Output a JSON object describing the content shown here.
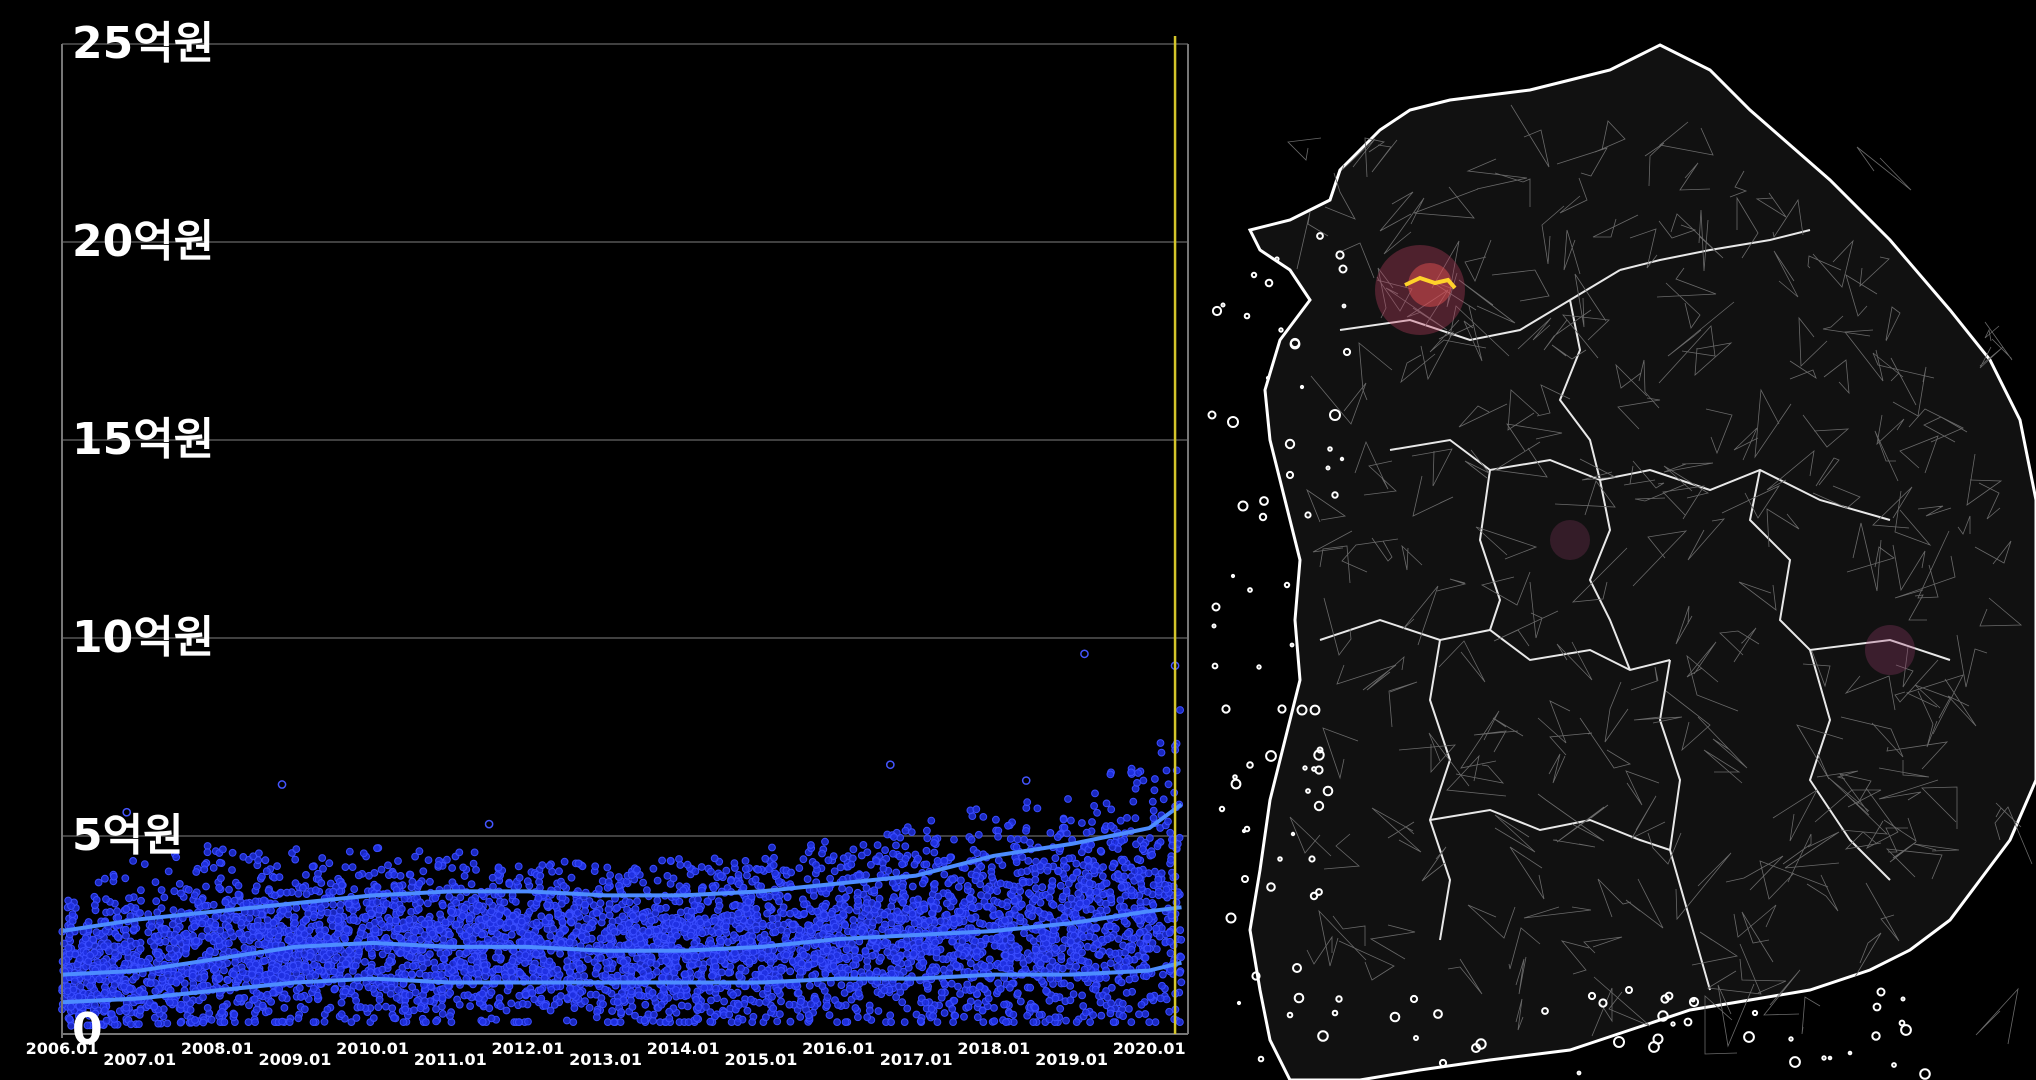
{
  "chart_data": {
    "type": "scatter",
    "title": "",
    "xlabel": "",
    "ylabel": "",
    "y_unit": "억원",
    "ylim": [
      0,
      25
    ],
    "y_ticks": [
      {
        "value": 0,
        "label": "0"
      },
      {
        "value": 5,
        "label": "5억원"
      },
      {
        "value": 10,
        "label": "10억원"
      },
      {
        "value": 15,
        "label": "15억원"
      },
      {
        "value": 20,
        "label": "20억원"
      },
      {
        "value": 25,
        "label": "25억원"
      }
    ],
    "xlim": [
      "2006.01",
      "2020.07"
    ],
    "x_ticks": [
      "2006.01",
      "2007.01",
      "2008.01",
      "2009.01",
      "2010.01",
      "2011.01",
      "2012.01",
      "2013.01",
      "2014.01",
      "2015.01",
      "2016.01",
      "2017.01",
      "2018.01",
      "2019.01",
      "2020.01"
    ],
    "grid": true,
    "current_marker": "2020.05",
    "colors": {
      "points": "#2b3cff",
      "lines": "#4d8cff",
      "marker": "#d4c52a",
      "grid": "#555555"
    },
    "series": [
      {
        "role": "upper-band",
        "x": [
          "2006.01",
          "2007.01",
          "2008.01",
          "2009.01",
          "2010.01",
          "2011.01",
          "2012.01",
          "2013.01",
          "2014.01",
          "2015.01",
          "2016.01",
          "2017.01",
          "2018.01",
          "2019.01",
          "2020.01",
          "2020.06"
        ],
        "values": [
          2.6,
          2.9,
          3.1,
          3.3,
          3.5,
          3.6,
          3.6,
          3.5,
          3.5,
          3.6,
          3.8,
          4.0,
          4.5,
          4.8,
          5.2,
          5.8
        ]
      },
      {
        "role": "median",
        "x": [
          "2006.01",
          "2007.01",
          "2008.01",
          "2009.01",
          "2010.01",
          "2011.01",
          "2012.01",
          "2013.01",
          "2014.01",
          "2015.01",
          "2016.01",
          "2017.01",
          "2018.01",
          "2019.01",
          "2020.01",
          "2020.06"
        ],
        "values": [
          1.5,
          1.6,
          1.9,
          2.2,
          2.3,
          2.2,
          2.2,
          2.1,
          2.1,
          2.2,
          2.4,
          2.5,
          2.6,
          2.8,
          3.1,
          3.2
        ]
      },
      {
        "role": "lower-band",
        "x": [
          "2006.01",
          "2007.01",
          "2008.01",
          "2009.01",
          "2010.01",
          "2011.01",
          "2012.01",
          "2013.01",
          "2014.01",
          "2015.01",
          "2016.01",
          "2017.01",
          "2018.01",
          "2019.01",
          "2020.01",
          "2020.06"
        ],
        "values": [
          0.8,
          0.9,
          1.1,
          1.3,
          1.4,
          1.3,
          1.3,
          1.3,
          1.3,
          1.3,
          1.4,
          1.4,
          1.5,
          1.5,
          1.6,
          1.8
        ]
      }
    ],
    "point_envelope": {
      "x": [
        "2006.01",
        "2007.01",
        "2008.01",
        "2009.01",
        "2010.01",
        "2011.01",
        "2012.01",
        "2013.01",
        "2014.01",
        "2015.01",
        "2016.01",
        "2017.01",
        "2018.01",
        "2019.01",
        "2020.01",
        "2020.06"
      ],
      "upper": [
        3.3,
        4.5,
        4.8,
        4.6,
        4.7,
        4.6,
        4.5,
        4.3,
        4.5,
        4.7,
        4.9,
        5.3,
        5.8,
        6.2,
        7.0,
        8.5
      ],
      "lower": [
        0.2,
        0.25,
        0.3,
        0.3,
        0.3,
        0.3,
        0.3,
        0.3,
        0.3,
        0.3,
        0.3,
        0.3,
        0.3,
        0.3,
        0.3,
        0.3
      ]
    },
    "outliers": [
      {
        "x": "2006.11",
        "y": 5.6
      },
      {
        "x": "2008.11",
        "y": 6.3
      },
      {
        "x": "2011.07",
        "y": 5.3
      },
      {
        "x": "2016.09",
        "y": 6.8
      },
      {
        "x": "2018.06",
        "y": 6.4
      },
      {
        "x": "2019.03",
        "y": 9.6
      },
      {
        "x": "2020.05",
        "y": 9.3
      }
    ]
  },
  "map": {
    "region": "South Korea",
    "hotspot_color": "#ffd22a"
  }
}
